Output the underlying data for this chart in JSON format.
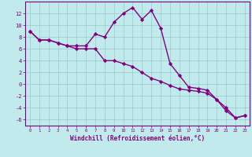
{
  "xlabel": "Windchill (Refroidissement éolien,°C)",
  "x": [
    0,
    1,
    2,
    3,
    4,
    5,
    6,
    7,
    8,
    9,
    10,
    11,
    12,
    13,
    14,
    15,
    16,
    17,
    18,
    19,
    20,
    21,
    22,
    23
  ],
  "line1": [
    9,
    7.5,
    7.5,
    7,
    6.5,
    6.5,
    6.5,
    8.5,
    8,
    10.5,
    12,
    13,
    11,
    12.5,
    9.5,
    3.5,
    1.5,
    -0.5,
    -0.7,
    -1,
    -2.6,
    -4.5,
    -5.7,
    -5.3
  ],
  "line2": [
    9,
    7.5,
    7.5,
    7,
    6.5,
    6,
    6,
    6,
    4,
    4,
    3.5,
    3,
    2,
    1,
    0.5,
    -0.2,
    -0.8,
    -1,
    -1.2,
    -1.5,
    -2.6,
    -4,
    -5.7,
    -5.3
  ],
  "ylim": [
    -7,
    14
  ],
  "xlim": [
    -0.5,
    23.5
  ],
  "yticks": [
    -6,
    -4,
    -2,
    0,
    2,
    4,
    6,
    8,
    10,
    12
  ],
  "xticks": [
    0,
    1,
    2,
    3,
    4,
    5,
    6,
    7,
    8,
    9,
    10,
    11,
    12,
    13,
    14,
    15,
    16,
    17,
    18,
    19,
    20,
    21,
    22,
    23
  ],
  "line_color": "#800080",
  "bg_color": "#c0eaec",
  "grid_color": "#9dc8cc",
  "tick_color": "#800080",
  "label_color": "#800080",
  "marker": "D",
  "markersize": 2.2,
  "linewidth": 1.0
}
